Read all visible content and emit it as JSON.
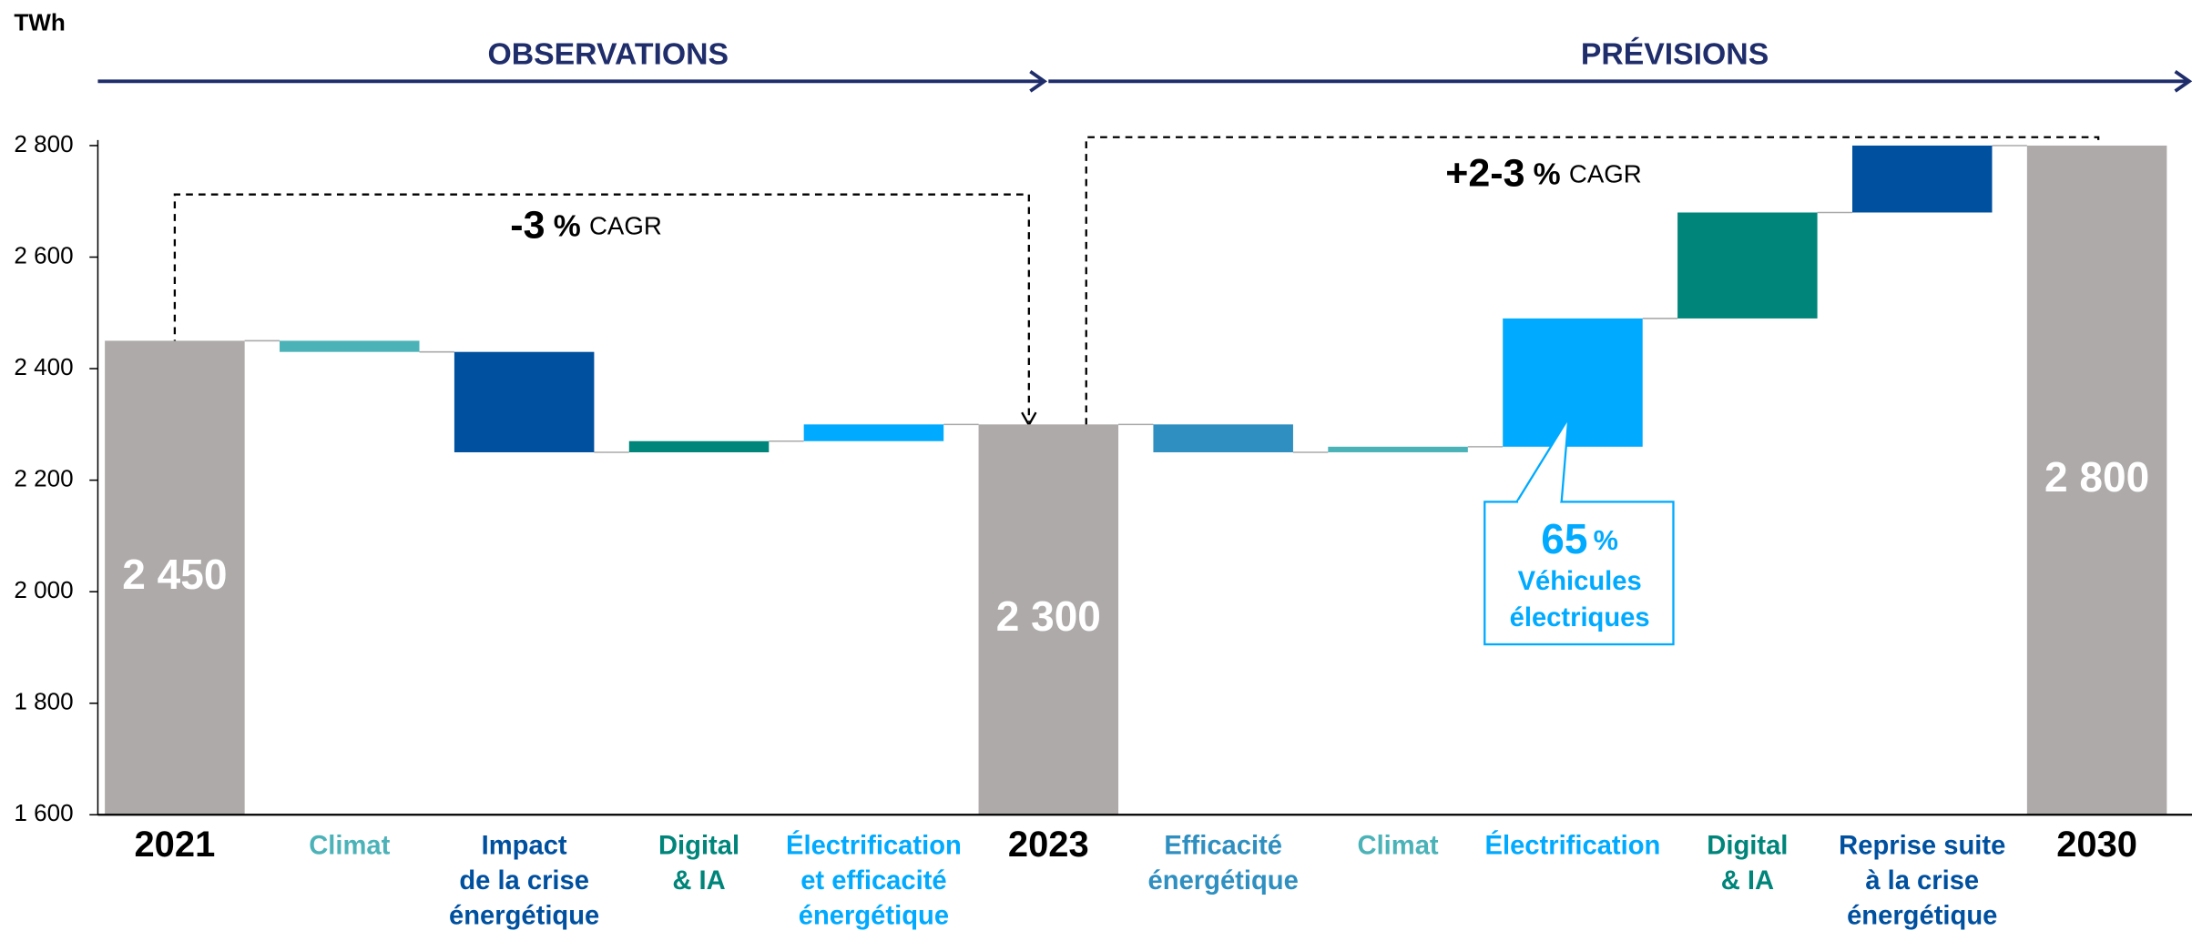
{
  "chart_data": {
    "type": "waterfall",
    "unit_label": "TWh",
    "sections": [
      "OBSERVATIONS",
      "PRÉVISIONS"
    ],
    "categories": [
      "2021",
      "Climat",
      "Impact\nde la crise\nénergétique",
      "Digital\n& IA",
      "Électrification\net efficacité\nénergétique",
      "2023",
      "Efficacité\nénergétique",
      "Climat",
      "Électrification",
      "Digital\n& IA",
      "Reprise suite\nà la crise\nénergétique",
      "2030"
    ],
    "values": [
      2450,
      -20,
      -180,
      20,
      30,
      2300,
      -50,
      10,
      230,
      190,
      120,
      2800
    ],
    "value_labels": [
      "2 450",
      null,
      null,
      null,
      null,
      "2 300",
      null,
      null,
      null,
      null,
      null,
      "2 800"
    ],
    "is_total": [
      true,
      false,
      false,
      false,
      false,
      true,
      false,
      false,
      false,
      false,
      false,
      true
    ],
    "colors": [
      "#aeaaaa",
      "#4bb3b8",
      "#0050a0",
      "#00857a",
      "#00aaff",
      "#aeaaaa",
      "#2e8fc0",
      "#4bb3b8",
      "#00aaff",
      "#00857a",
      "#0050a0",
      "#aeaaaa"
    ],
    "ylim": [
      1600,
      2800
    ],
    "yticks": [
      {
        "value": 1600,
        "label": "1 600"
      },
      {
        "value": 1800,
        "label": "1 800"
      },
      {
        "value": 2000,
        "label": "2 000"
      },
      {
        "value": 2200,
        "label": "2 200"
      },
      {
        "value": 2400,
        "label": "2 400"
      },
      {
        "value": 2600,
        "label": "2 600"
      },
      {
        "value": 2800,
        "label": "2 800"
      }
    ],
    "annotations": [
      {
        "big": "-3",
        "unit": "%",
        "label": "CAGR"
      },
      {
        "big": "+2-3",
        "unit": "%",
        "label": "CAGR"
      }
    ],
    "callout": {
      "big": "65",
      "unit": "%",
      "lines": [
        "Véhicules",
        "électriques"
      ]
    }
  }
}
